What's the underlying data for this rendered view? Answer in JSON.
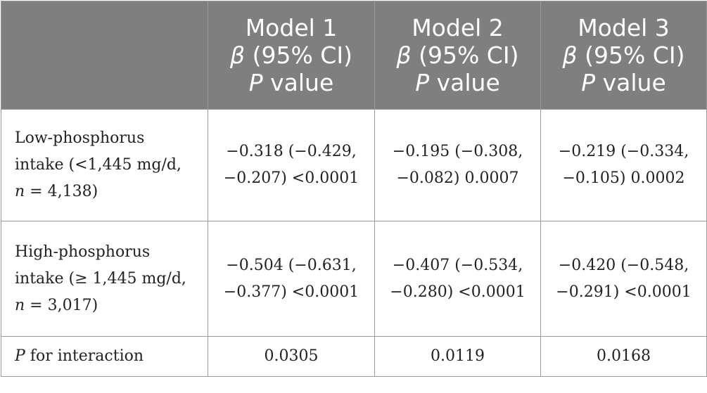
{
  "header": {
    "blank": "",
    "models": [
      {
        "title": "Model 1",
        "beta": "β",
        "ci": " (95% CI)",
        "p": "P",
        "value": " value"
      },
      {
        "title": "Model 2",
        "beta": "β",
        "ci": " (95% CI)",
        "p": "P",
        "value": " value"
      },
      {
        "title": "Model 3",
        "beta": "β",
        "ci": " (95% CI)",
        "p": "P",
        "value": " value"
      }
    ]
  },
  "rows": [
    {
      "label_lines": [
        "Low-phosphorus",
        "intake (<1,445 mg/d,"
      ],
      "n_var": "n",
      "n_text": " = 4,138)",
      "cells": [
        [
          "−0.318 (−0.429,",
          "−0.207) <0.0001"
        ],
        [
          "−0.195 (−0.308,",
          "−0.082) 0.0007"
        ],
        [
          "−0.219 (−0.334,",
          "−0.105) 0.0002"
        ]
      ]
    },
    {
      "label_lines": [
        "High-phosphorus",
        "intake (≥ 1,445 mg/d,"
      ],
      "n_var": "n",
      "n_text": " = 3,017)",
      "cells": [
        [
          "−0.504 (−0.631,",
          "−0.377) <0.0001"
        ],
        [
          "−0.407 (−0.534,",
          "−0.280) <0.0001"
        ],
        [
          "−0.420 (−0.548,",
          "−0.291) <0.0001"
        ]
      ]
    }
  ],
  "interaction": {
    "p": "P",
    "label": " for interaction",
    "values": [
      "0.0305",
      "0.0119",
      "0.0168"
    ]
  }
}
